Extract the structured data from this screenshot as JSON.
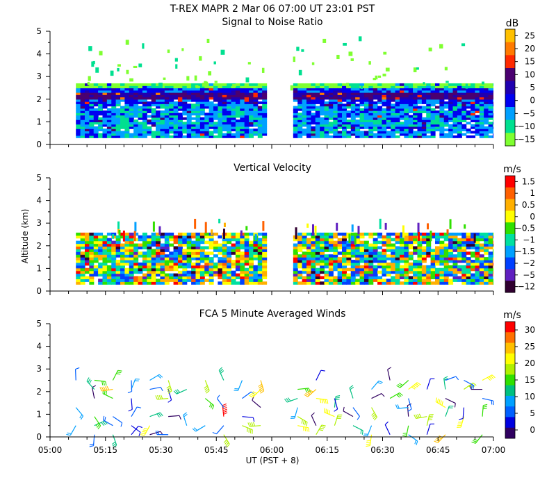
{
  "chart_data": {
    "header": "T-REX   MAPR   2 Mar 06   07:00 UT   23:01   PST",
    "x_label": "UT  (PST + 8)",
    "y_label": "Altitude (km)",
    "x_ticks": [
      "05:00",
      "05:15",
      "05:30",
      "05:45",
      "06:00",
      "06:15",
      "06:30",
      "06:45",
      "07:00"
    ],
    "x_range_min": [
      0,
      120
    ],
    "y_range_km": [
      0,
      5
    ],
    "y_ticks": [
      "0",
      "1",
      "2",
      "3",
      "4",
      "5"
    ],
    "data_gap_min": [
      58,
      65
    ],
    "panels": [
      {
        "id": "snr",
        "type": "heatmap",
        "title": "Signal to Noise Ratio",
        "unit": "dB",
        "colorbar": {
          "labels": [
            "25",
            "20",
            "15",
            "10",
            "5",
            "0",
            "−5",
            "−10",
            "−15"
          ],
          "colors": [
            "#ffc000",
            "#ff7a00",
            "#ff2a00",
            "#4a0070",
            "#2000b0",
            "#0000f0",
            "#00a0ff",
            "#00e090",
            "#7fff30"
          ]
        },
        "data_extent_km": [
          0.3,
          2.7
        ],
        "peak_layer_km": 2.1
      },
      {
        "id": "vv",
        "type": "heatmap",
        "title": "Vertical Velocity",
        "unit": "m/s",
        "colorbar": {
          "labels": [
            "1.5",
            "1",
            "0.5",
            "0",
            "−0.5",
            "−1",
            "−1.5",
            "−2",
            "−5",
            "−12"
          ],
          "colors": [
            "#ff0000",
            "#ff6000",
            "#ffb000",
            "#ffff00",
            "#30e000",
            "#00e0a0",
            "#00a0ff",
            "#0040ff",
            "#6020c0",
            "#300030"
          ]
        },
        "data_extent_km": [
          0.3,
          2.5
        ]
      },
      {
        "id": "winds",
        "type": "scatter",
        "title": "FCA 5 Minute Averaged Winds",
        "unit": "m/s",
        "colorbar": {
          "labels": [
            "30",
            "25",
            "20",
            "15",
            "10",
            "5",
            "0"
          ],
          "colors": [
            "#ff0000",
            "#ff7000",
            "#ffc000",
            "#ffff00",
            "#b0f000",
            "#30e000",
            "#00c080",
            "#00a0ff",
            "#0060ff",
            "#0000e0",
            "#300060"
          ]
        },
        "barb_altitudes_km": [
          0.1,
          0.5,
          0.9,
          1.3,
          1.7,
          2.1,
          2.5
        ],
        "speed_range_ms": [
          0,
          32
        ]
      }
    ]
  }
}
